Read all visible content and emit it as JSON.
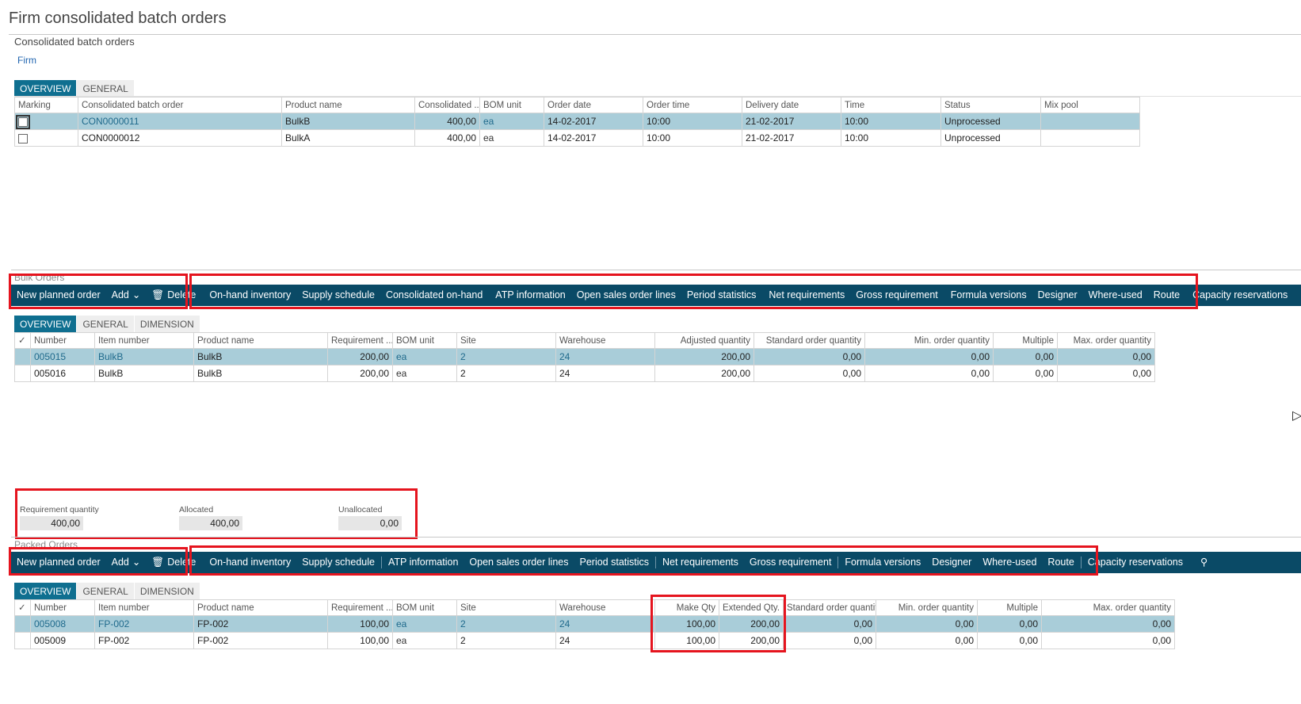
{
  "page": {
    "title": "Firm consolidated batch orders",
    "section": "Consolidated batch orders",
    "firm_link": "Firm"
  },
  "consolidated": {
    "tabs": [
      "OVERVIEW",
      "GENERAL"
    ],
    "headers": [
      "Marking",
      "Consolidated batch order",
      "Product name",
      "Consolidated ...",
      "BOM unit",
      "Order date",
      "Order time",
      "Delivery date",
      "Time",
      "Status",
      "Mix pool"
    ],
    "rows": [
      [
        "",
        "CON0000011",
        "BulkB",
        "400,00",
        "ea",
        "14-02-2017",
        "10:00",
        "21-02-2017",
        "10:00",
        "Unprocessed",
        ""
      ],
      [
        "",
        "CON0000012",
        "BulkA",
        "400,00",
        "ea",
        "14-02-2017",
        "10:00",
        "21-02-2017",
        "10:00",
        "Unprocessed",
        ""
      ]
    ]
  },
  "bulk": {
    "label": "Bulk Orders",
    "actions": {
      "new": "New planned order",
      "add": "Add",
      "delete": "Delete"
    },
    "toolbar": [
      "On-hand inventory",
      "Supply schedule",
      "Consolidated on-hand",
      "ATP information",
      "Open sales order lines",
      "Period statistics",
      "Net requirements",
      "Gross requirement",
      "Formula versions",
      "Designer",
      "Where-used",
      "Route",
      "Capacity reservations"
    ],
    "tabs": [
      "OVERVIEW",
      "GENERAL",
      "DIMENSION"
    ],
    "headers": [
      "✓",
      "Number",
      "Item number",
      "Product name",
      "Requirement ...",
      "BOM unit",
      "Site",
      "Warehouse",
      "Adjusted quantity",
      "Standard order quantity",
      "Min. order quantity",
      "Multiple",
      "Max. order quantity"
    ],
    "rows": [
      [
        "",
        "005015",
        "BulkB",
        "BulkB",
        "200,00",
        "ea",
        "2",
        "24",
        "200,00",
        "0,00",
        "0,00",
        "0,00",
        "0,00"
      ],
      [
        "",
        "005016",
        "BulkB",
        "BulkB",
        "200,00",
        "ea",
        "2",
        "24",
        "200,00",
        "0,00",
        "0,00",
        "0,00",
        "0,00"
      ]
    ]
  },
  "summary": {
    "requirement_label": "Requirement quantity",
    "requirement_value": "400,00",
    "allocated_label": "Allocated",
    "allocated_value": "400,00",
    "unallocated_label": "Unallocated",
    "unallocated_value": "0,00"
  },
  "packed": {
    "label": "Packed Orders",
    "actions": {
      "new": "New planned order",
      "add": "Add",
      "delete": "Delete"
    },
    "toolbar": [
      "On-hand inventory",
      "Supply schedule",
      "ATP information",
      "Open sales order lines",
      "Period statistics",
      "Net requirements",
      "Gross requirement",
      "Formula versions",
      "Designer",
      "Where-used",
      "Route",
      "Capacity reservations"
    ],
    "tabs": [
      "OVERVIEW",
      "GENERAL",
      "DIMENSION"
    ],
    "headers": [
      "✓",
      "Number",
      "Item number",
      "Product name",
      "Requirement ...",
      "BOM unit",
      "Site",
      "Warehouse",
      "Make Qty",
      "Extended Qty.",
      "Standard order quantity",
      "Min. order quantity",
      "Multiple",
      "Max. order quantity"
    ],
    "rows": [
      [
        "",
        "005008",
        "FP-002",
        "FP-002",
        "100,00",
        "ea",
        "2",
        "24",
        "100,00",
        "200,00",
        "0,00",
        "0,00",
        "0,00",
        "0,00"
      ],
      [
        "",
        "005009",
        "FP-002",
        "FP-002",
        "100,00",
        "ea",
        "2",
        "24",
        "100,00",
        "200,00",
        "0,00",
        "0,00",
        "0,00",
        "0,00"
      ]
    ]
  },
  "colors": {
    "toolbar": "#0a4a66",
    "selected_row": "#a9cdd9",
    "active_tab": "#0f6f90",
    "highlight": "#e5141e"
  }
}
